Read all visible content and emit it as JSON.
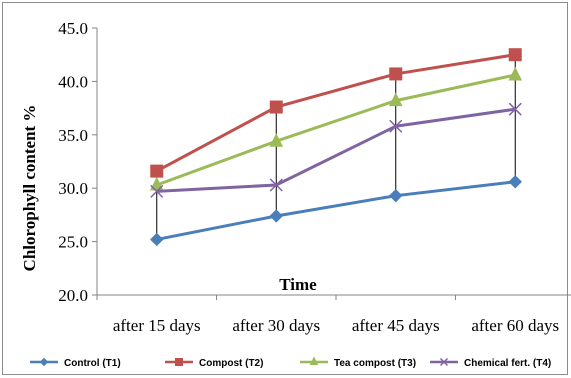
{
  "chart_data": {
    "type": "line",
    "title": "",
    "xlabel": "Time",
    "ylabel": "Chlorophyll content %",
    "ylim": [
      20.0,
      45.0
    ],
    "yticks": [
      "20.0",
      "25.0",
      "30.0",
      "35.0",
      "40.0",
      "45.0"
    ],
    "categories": [
      "after 15 days",
      "after 30 days",
      "after 45 days",
      "after 60 days"
    ],
    "grid": "none",
    "drop_lines": true,
    "legend_position": "bottom",
    "series": [
      {
        "name": "Control (T1)",
        "color": "#4a7ebb",
        "marker": "diamond",
        "values": [
          25.2,
          27.4,
          29.3,
          30.6
        ]
      },
      {
        "name": "Compost (T2)",
        "color": "#c0504d",
        "marker": "square",
        "values": [
          31.6,
          37.6,
          40.7,
          42.5
        ]
      },
      {
        "name": "Tea compost  (T3)",
        "color": "#9bbb59",
        "marker": "triangle",
        "values": [
          30.3,
          34.4,
          38.2,
          40.6
        ]
      },
      {
        "name": "Chemical fert. (T4)",
        "color": "#8064a2",
        "marker": "cross",
        "values": [
          29.7,
          30.3,
          35.8,
          37.4
        ]
      }
    ]
  }
}
